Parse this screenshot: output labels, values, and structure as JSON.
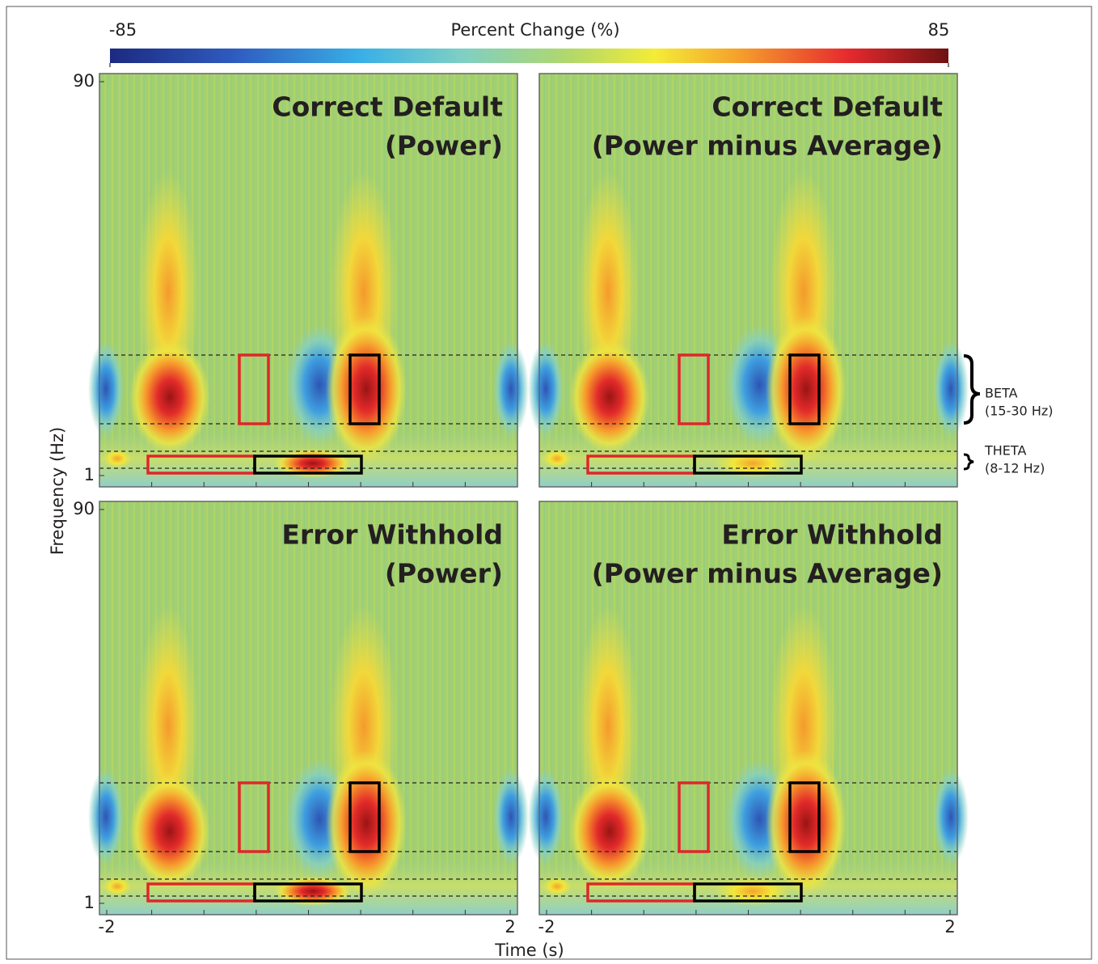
{
  "colorbar": {
    "label": "Percent Change (%)",
    "ticks": [
      -85,
      85
    ]
  },
  "panels": [
    {
      "title": [
        "Correct Default",
        "(Power)"
      ]
    },
    {
      "title": [
        "Correct Default",
        "(Power minus Average)"
      ]
    },
    {
      "title": [
        "Error Withhold",
        "(Power)"
      ]
    },
    {
      "title": [
        "Error Withhold",
        "(Power minus Average)"
      ]
    }
  ],
  "y_axis": {
    "label": "Frequency (Hz)",
    "ticks": [
      1,
      90
    ]
  },
  "x_axis": {
    "label": "Time (s)",
    "ticks": [
      -2,
      2
    ]
  },
  "annotations": {
    "beta": [
      "BETA",
      "(15-30 Hz)"
    ],
    "theta": [
      "THETA",
      "(8-12 Hz)"
    ]
  }
}
